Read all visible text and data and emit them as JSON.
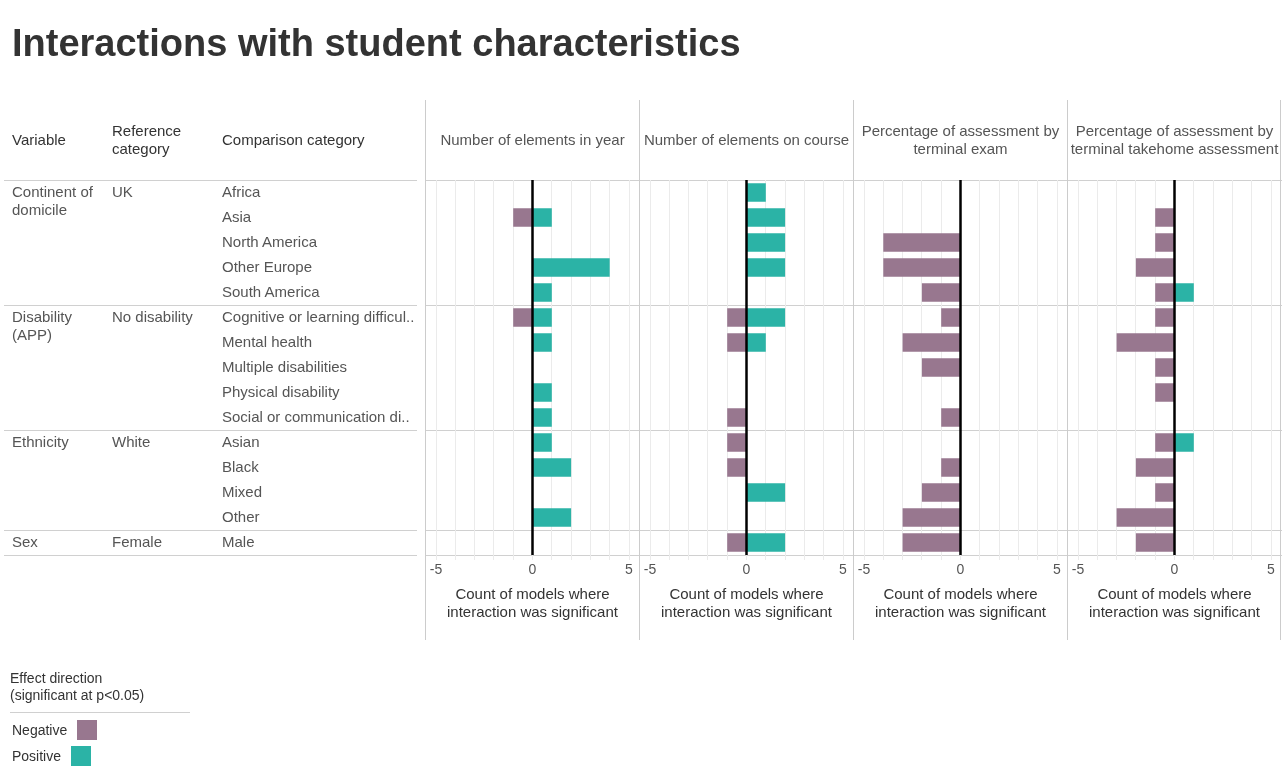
{
  "chart_data": [
    {
      "type": "other",
      "title": "Interactions with student characteristics",
      "categories": [
        "Africa",
        "Asia",
        "North America",
        "Other Europe",
        "South America",
        "Cognitive or learning difficul..",
        "Mental health",
        "Multiple disabilities",
        "Physical disability",
        "Social or communication di..",
        "Asian",
        "Black",
        "Mixed",
        "Other",
        "Male"
      ],
      "annotations": [
        "Variable",
        "Reference category",
        "Comparison category",
        {
          "text": "Continent of domicile",
          "x": "Variable",
          "y": "Africa"
        },
        {
          "text": "UK",
          "x": "Reference category",
          "y": "Africa"
        },
        {
          "text": "Disability (APP)",
          "x": "Variable",
          "y": "Cognitive or learning difficul.."
        },
        {
          "text": "No disability",
          "x": "Reference category",
          "y": "Cognitive or learning difficul.."
        },
        {
          "text": "Ethnicity",
          "x": "Variable",
          "y": "Asian"
        },
        {
          "text": "White",
          "x": "Reference category",
          "y": "Asian"
        },
        {
          "text": "Sex",
          "x": "Variable",
          "y": "Male"
        },
        {
          "text": "Female",
          "x": "Reference category",
          "y": "Male"
        }
      ]
    },
    {
      "type": "bar",
      "orientation": "horizontal",
      "stacked": true,
      "title": "Number of elements in year",
      "xlabel": "Count of models where interaction was significant",
      "legend": "bottom left",
      "legend_title": "Effect direction\n(significant at p<0.05)",
      "tick_labels": "x",
      "grid": "x",
      "categories": [
        "Africa",
        "Asia",
        "North America",
        "Other Europe",
        "South America",
        "Cognitive or learning difficul..",
        "Mental health",
        "Multiple disabilities",
        "Physical disability",
        "Social or communication di..",
        "Asian",
        "Black",
        "Mixed",
        "Other",
        "Male"
      ],
      "xlim": [
        -5,
        5
      ],
      "xticks": [
        -5,
        {
          "value": -4,
          "label": null
        },
        {
          "value": -3,
          "label": null
        },
        {
          "value": -2,
          "label": null
        },
        {
          "value": -1,
          "label": null
        },
        0,
        {
          "value": 1,
          "label": null
        },
        {
          "value": 2,
          "label": null
        },
        {
          "value": 3,
          "label": null
        },
        {
          "value": 4,
          "label": null
        },
        5
      ],
      "ref_lines": [
        {
          "axis": "x",
          "value": 0,
          "color": "#000000"
        }
      ],
      "series": [
        {
          "name": "Negative",
          "color": "#98778f",
          "values": [
            null,
            -1,
            null,
            null,
            null,
            -1,
            null,
            null,
            null,
            null,
            null,
            null,
            null,
            null,
            null
          ]
        },
        {
          "name": "Positive",
          "color": "#2bb3a6",
          "values": [
            null,
            1,
            null,
            4,
            1,
            1,
            1,
            null,
            1,
            1,
            1,
            2,
            null,
            2,
            null
          ]
        }
      ]
    },
    {
      "type": "bar",
      "orientation": "horizontal",
      "stacked": true,
      "title": "Number of elements on course",
      "xlabel": "Count of models where interaction was significant",
      "tick_labels": "x",
      "grid": "x",
      "categories": [
        "Africa",
        "Asia",
        "North America",
        "Other Europe",
        "South America",
        "Cognitive or learning difficul..",
        "Mental health",
        "Multiple disabilities",
        "Physical disability",
        "Social or communication di..",
        "Asian",
        "Black",
        "Mixed",
        "Other",
        "Male"
      ],
      "xlim": [
        -5,
        5
      ],
      "xticks": [
        -5,
        {
          "value": -4,
          "label": null
        },
        {
          "value": -3,
          "label": null
        },
        {
          "value": -2,
          "label": null
        },
        {
          "value": -1,
          "label": null
        },
        0,
        {
          "value": 1,
          "label": null
        },
        {
          "value": 2,
          "label": null
        },
        {
          "value": 3,
          "label": null
        },
        {
          "value": 4,
          "label": null
        },
        5
      ],
      "ref_lines": [
        {
          "axis": "x",
          "value": 0,
          "color": "#000000"
        }
      ],
      "series": [
        {
          "color": "#98778f",
          "values": [
            null,
            null,
            null,
            null,
            null,
            -1,
            -1,
            null,
            null,
            -1,
            -1,
            -1,
            null,
            null,
            -1
          ]
        },
        {
          "color": "#2bb3a6",
          "values": [
            1,
            2,
            2,
            2,
            null,
            2,
            1,
            null,
            null,
            null,
            null,
            null,
            2,
            null,
            2
          ]
        }
      ]
    },
    {
      "type": "bar",
      "orientation": "horizontal",
      "stacked": true,
      "title": "Percentage of assessment by terminal exam",
      "xlabel": "Count of models where interaction was significant",
      "tick_labels": "x",
      "grid": "x",
      "categories": [
        "Africa",
        "Asia",
        "North America",
        "Other Europe",
        "South America",
        "Cognitive or learning difficul..",
        "Mental health",
        "Multiple disabilities",
        "Physical disability",
        "Social or communication di..",
        "Asian",
        "Black",
        "Mixed",
        "Other",
        "Male"
      ],
      "xlim": [
        -5,
        5
      ],
      "xticks": [
        -5,
        {
          "value": -4,
          "label": null
        },
        {
          "value": -3,
          "label": null
        },
        {
          "value": -2,
          "label": null
        },
        {
          "value": -1,
          "label": null
        },
        0,
        {
          "value": 1,
          "label": null
        },
        {
          "value": 2,
          "label": null
        },
        {
          "value": 3,
          "label": null
        },
        {
          "value": 4,
          "label": null
        },
        5
      ],
      "ref_lines": [
        {
          "axis": "x",
          "value": 0,
          "color": "#000000"
        }
      ],
      "series": [
        {
          "color": "#98778f",
          "values": [
            null,
            null,
            -4,
            -4,
            -2,
            -1,
            -3,
            -2,
            null,
            -1,
            null,
            -1,
            -2,
            -3,
            -3
          ]
        }
      ]
    },
    {
      "type": "bar",
      "orientation": "horizontal",
      "stacked": true,
      "title": "Percentage of assessment by terminal takehome assessment",
      "xlabel": "Count of models where interaction was significant",
      "tick_labels": "x",
      "grid": "x",
      "categories": [
        "Africa",
        "Asia",
        "North America",
        "Other Europe",
        "South America",
        "Cognitive or learning difficul..",
        "Mental health",
        "Multiple disabilities",
        "Physical disability",
        "Social or communication di..",
        "Asian",
        "Black",
        "Mixed",
        "Other",
        "Male"
      ],
      "xlim": [
        -5,
        5
      ],
      "xticks": [
        -5,
        {
          "value": -4,
          "label": null
        },
        {
          "value": -3,
          "label": null
        },
        {
          "value": -2,
          "label": null
        },
        {
          "value": -1,
          "label": null
        },
        0,
        {
          "value": 1,
          "label": null
        },
        {
          "value": 2,
          "label": null
        },
        {
          "value": 3,
          "label": null
        },
        {
          "value": 4,
          "label": null
        },
        5
      ],
      "ref_lines": [
        {
          "axis": "x",
          "value": 0,
          "color": "#000000"
        }
      ],
      "series": [
        {
          "color": "#98778f",
          "values": [
            null,
            -1,
            -1,
            -2,
            -1,
            -1,
            -3,
            -1,
            -1,
            null,
            -1,
            -2,
            -1,
            -3,
            -2
          ]
        },
        {
          "color": "#2bb3a6",
          "values": [
            null,
            null,
            null,
            null,
            1,
            null,
            null,
            null,
            null,
            null,
            1,
            null,
            null,
            null,
            null
          ]
        }
      ]
    }
  ]
}
